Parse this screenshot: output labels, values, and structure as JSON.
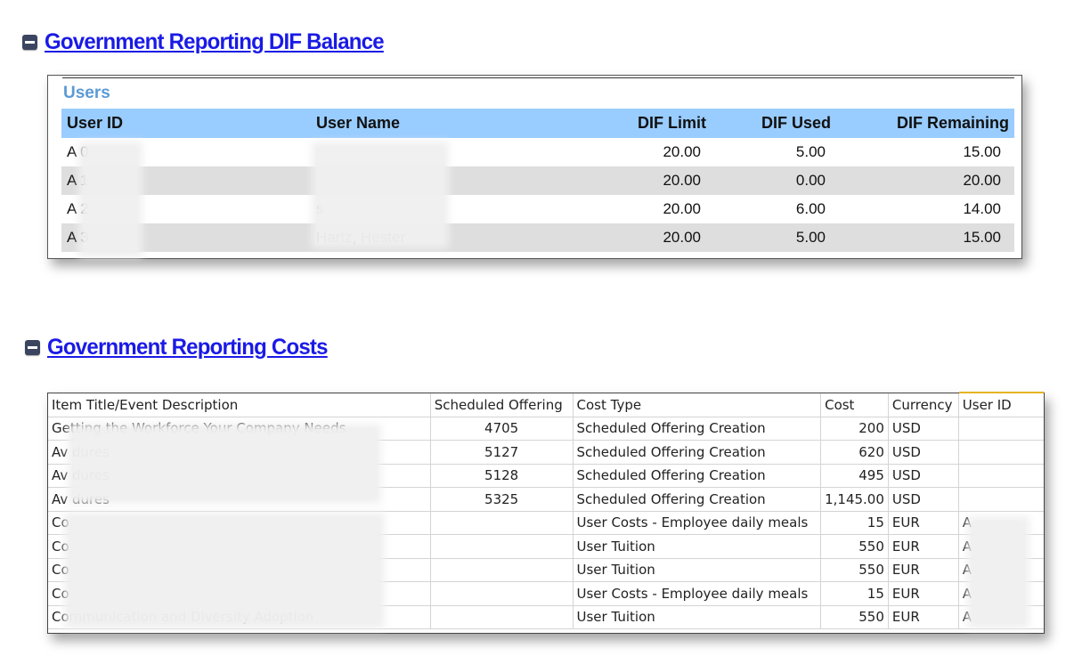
{
  "sections": {
    "dif_balance": {
      "title": "Government Reporting DIF Balance"
    },
    "costs": {
      "title": "Government Reporting Costs"
    }
  },
  "users": {
    "caption": "Users",
    "columns": [
      "User ID",
      "User Name",
      "DIF Limit",
      "DIF Used",
      "DIF Remaining"
    ],
    "rows": [
      {
        "user_id": "A        0",
        "user_name": "",
        "dif_limit": "20.00",
        "dif_used": "5.00",
        "dif_remaining": "15.00"
      },
      {
        "user_id": "A        1",
        "user_name": "",
        "dif_limit": "20.00",
        "dif_used": "0.00",
        "dif_remaining": "20.00"
      },
      {
        "user_id": "A        2",
        "user_name": "s",
        "dif_limit": "20.00",
        "dif_used": "6.00",
        "dif_remaining": "14.00"
      },
      {
        "user_id": "A        3",
        "user_name": "Hartz, Hester",
        "dif_limit": "20.00",
        "dif_used": "5.00",
        "dif_remaining": "15.00"
      }
    ]
  },
  "costs": {
    "columns": [
      "Item Title/Event Description",
      "Scheduled Offering",
      "Cost Type",
      "Cost",
      "Currency",
      "User ID"
    ],
    "rows": [
      {
        "item": "Getting the Workforce Your Company Needs",
        "offering": "4705",
        "cost_type": "Scheduled Offering Creation",
        "cost": "200",
        "currency": "USD",
        "user_id": ""
      },
      {
        "item": "Av                                         dures",
        "offering": "5127",
        "cost_type": "Scheduled Offering Creation",
        "cost": "620",
        "currency": "USD",
        "user_id": ""
      },
      {
        "item": "Av                                         dures",
        "offering": "5128",
        "cost_type": "Scheduled Offering Creation",
        "cost": "495",
        "currency": "USD",
        "user_id": ""
      },
      {
        "item": "Av                                         dures",
        "offering": "5325",
        "cost_type": "Scheduled Offering Creation",
        "cost": "1,145.00",
        "currency": "USD",
        "user_id": ""
      },
      {
        "item": "Co",
        "offering": "",
        "cost_type": "User Costs - Employee daily meals",
        "cost": "15",
        "currency": "EUR",
        "user_id": "A"
      },
      {
        "item": "Co",
        "offering": "",
        "cost_type": "User Tuition",
        "cost": "550",
        "currency": "EUR",
        "user_id": "A"
      },
      {
        "item": "Co",
        "offering": "",
        "cost_type": "User Tuition",
        "cost": "550",
        "currency": "EUR",
        "user_id": "A"
      },
      {
        "item": "Co",
        "offering": "",
        "cost_type": "User Costs - Employee daily meals",
        "cost": "15",
        "currency": "EUR",
        "user_id": "A"
      },
      {
        "item": "Communication and Diversity Adoption",
        "offering": "",
        "cost_type": "User Tuition",
        "cost": "550",
        "currency": "EUR",
        "user_id": "A"
      }
    ]
  }
}
